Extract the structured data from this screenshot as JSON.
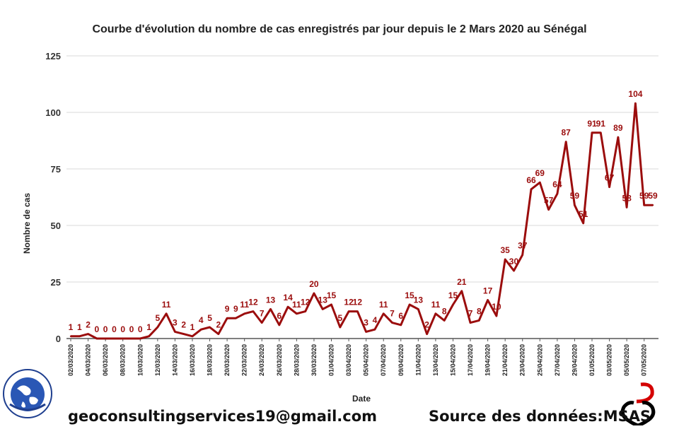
{
  "chart_data": {
    "type": "line",
    "title": "Courbe d'évolution du nombre de cas enregistrés par jour depuis le 2 Mars 2020 au Sénégal",
    "xlabel": "Date",
    "ylabel": "Nombre de cas",
    "ylim": [
      0,
      125
    ],
    "yticks": [
      0,
      25,
      50,
      75,
      100,
      125
    ],
    "grid": true,
    "series": [
      {
        "color": "#9b0d0d",
        "values": [
          1,
          1,
          2,
          0,
          0,
          0,
          0,
          0,
          0,
          1,
          5,
          11,
          3,
          2,
          1,
          4,
          5,
          2,
          9,
          9,
          11,
          12,
          7,
          13,
          6,
          14,
          11,
          12,
          20,
          13,
          15,
          5,
          12,
          12,
          3,
          4,
          11,
          7,
          6,
          15,
          13,
          2,
          11,
          8,
          15,
          21,
          7,
          8,
          17,
          10,
          35,
          30,
          37,
          66,
          69,
          57,
          64,
          87,
          59,
          51,
          91,
          91,
          67,
          89,
          58,
          104,
          59,
          59
        ]
      }
    ],
    "x_tick_labels": [
      "02/03/2020",
      "04/03/2020",
      "06/03/2020",
      "08/03/2020",
      "10/03/2020",
      "12/03/2020",
      "14/03/2020",
      "16/03/2020",
      "18/03/2020",
      "20/03/2020",
      "22/03/2020",
      "24/03/2020",
      "26/03/2020",
      "28/03/2020",
      "30/03/2020",
      "01/04/2020",
      "03/04/2020",
      "05/04/2020",
      "07/04/2020",
      "09/04/2020",
      "11/04/2020",
      "13/04/2020",
      "15/04/2020",
      "17/04/2020",
      "19/04/2020",
      "21/04/2020",
      "23/04/2020",
      "25/04/2020",
      "27/04/2020",
      "29/04/2020",
      "01/05/2020",
      "03/05/2020",
      "05/05/2020",
      "07/05/2020"
    ]
  },
  "footer": {
    "email": "geoconsultingservices19@gmail.com",
    "source": "Source des données:MSAS"
  },
  "logo": {
    "text": "GEO CONSULTING SERVICES"
  }
}
